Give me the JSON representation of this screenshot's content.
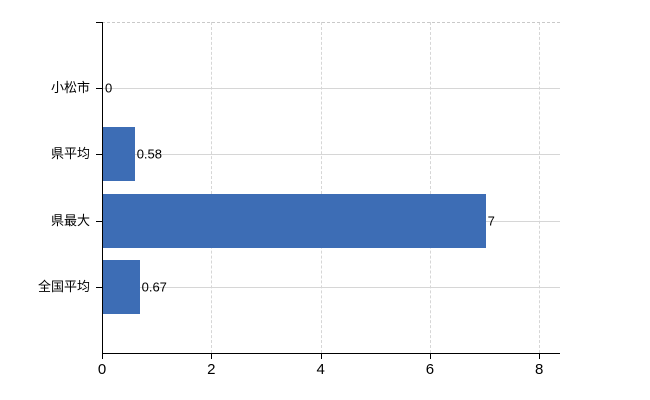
{
  "chart_data": {
    "type": "bar",
    "orientation": "horizontal",
    "title": "",
    "categories": [
      "小松市",
      "県平均",
      "県最大",
      "全国平均"
    ],
    "values": [
      0,
      0.58,
      7,
      0.67
    ],
    "data_labels": [
      "0",
      "0.58",
      "7",
      "0.67"
    ],
    "x_ticks": [
      "0",
      "2",
      "4",
      "6",
      "8"
    ],
    "x_tick_values": [
      0,
      2,
      4,
      6,
      8
    ],
    "xlim": [
      0,
      8.38
    ],
    "grid": true,
    "legend": "none",
    "colors": {
      "bar": "#3D6DB5",
      "gridline": "#D6D6D6",
      "axis": "#000000",
      "text": "#000000",
      "background": "#FFFFFF"
    }
  }
}
